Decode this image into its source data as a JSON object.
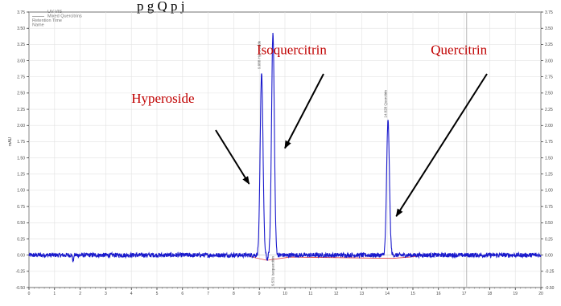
{
  "header_text": "p         g     Q       p j",
  "chart_data": {
    "type": "line",
    "title": "",
    "xlabel": "",
    "ylabel": "mAU",
    "xlim": [
      0,
      20
    ],
    "ylim": [
      -0.5,
      3.75
    ],
    "x_ticks": [
      "0",
      "1",
      "2",
      "3",
      "4",
      "5",
      "6",
      "7",
      "8",
      "9",
      "10",
      "11",
      "12",
      "13",
      "14",
      "15",
      "16",
      "17",
      "18",
      "19",
      "20"
    ],
    "y_ticks": [
      "-0.50",
      "-0.25",
      "0.00",
      "0.25",
      "0.50",
      "0.75",
      "1.00",
      "1.25",
      "1.50",
      "1.75",
      "2.00",
      "2.25",
      "2.50",
      "2.75",
      "3.00",
      "3.25",
      "3.50",
      "3.75"
    ],
    "legend": [
      "UV-VIS",
      "Mixed Quercitrins",
      "Retention Time",
      "Name"
    ],
    "series": [
      {
        "name": "Mixed Quercitrins",
        "color": "#1a1acc",
        "baseline": 0.0,
        "peaks": [
          {
            "rt": 9.088,
            "height": 2.82,
            "label": "9.088 Hyperoside"
          },
          {
            "rt": 9.531,
            "height": 3.42,
            "label": "9.531 Isoquercitrin"
          },
          {
            "rt": 14.028,
            "height": 2.07,
            "label": "14.028 Quercitrin"
          }
        ]
      }
    ],
    "annotations": [
      {
        "text": "Hyperoside",
        "x": 4.0,
        "y": 2.35,
        "arrow_to": [
          8.6,
          1.1
        ]
      },
      {
        "text": "Isoquercitrin",
        "x": 8.9,
        "y": 3.1,
        "arrow_to": [
          10.0,
          1.65
        ]
      },
      {
        "text": "Quercitrin",
        "x": 15.7,
        "y": 3.1,
        "arrow_to": [
          14.35,
          0.6
        ]
      }
    ],
    "grid": true
  }
}
